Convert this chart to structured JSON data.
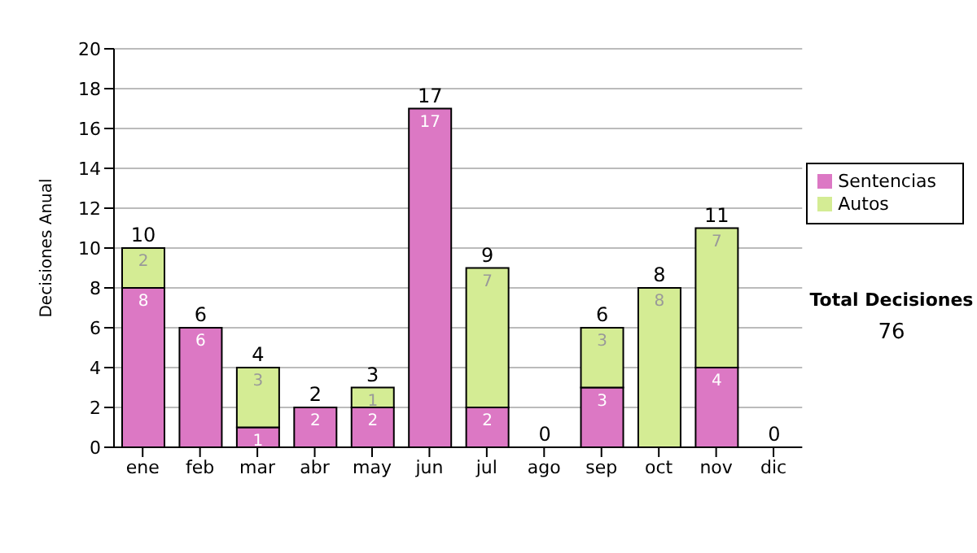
{
  "chart_data": {
    "type": "bar",
    "stacked": true,
    "ylabel": "Decisiones Anual",
    "categories": [
      "ene",
      "feb",
      "mar",
      "abr",
      "may",
      "jun",
      "jul",
      "ago",
      "sep",
      "oct",
      "nov",
      "dic"
    ],
    "series": [
      {
        "name": "Sentencias",
        "color": "#dc78c4",
        "values": [
          8,
          6,
          1,
          2,
          2,
          17,
          2,
          0,
          3,
          0,
          4,
          0
        ],
        "value_labels": [
          "8",
          "6",
          "1",
          "2",
          "2",
          "17",
          "2",
          null,
          "3",
          null,
          "4",
          null
        ]
      },
      {
        "name": "Autos",
        "color": "#d4ec94",
        "values": [
          2,
          0,
          3,
          0,
          1,
          0,
          7,
          0,
          3,
          8,
          7,
          0
        ],
        "value_labels": [
          "2",
          null,
          "3",
          null,
          "1",
          null,
          "7",
          null,
          "3",
          "8",
          "7",
          null
        ]
      }
    ],
    "totals": [
      "10",
      "6",
      "4",
      "2",
      "3",
      "17",
      "9",
      "0",
      "6",
      "8",
      "11",
      "0"
    ],
    "ylim": [
      0,
      20
    ],
    "yticks": [
      0,
      2,
      4,
      6,
      8,
      10,
      12,
      14,
      16,
      18,
      20
    ],
    "grid": "y",
    "legend": "right",
    "annotations": [
      "Total Decisiones",
      "76"
    ]
  }
}
